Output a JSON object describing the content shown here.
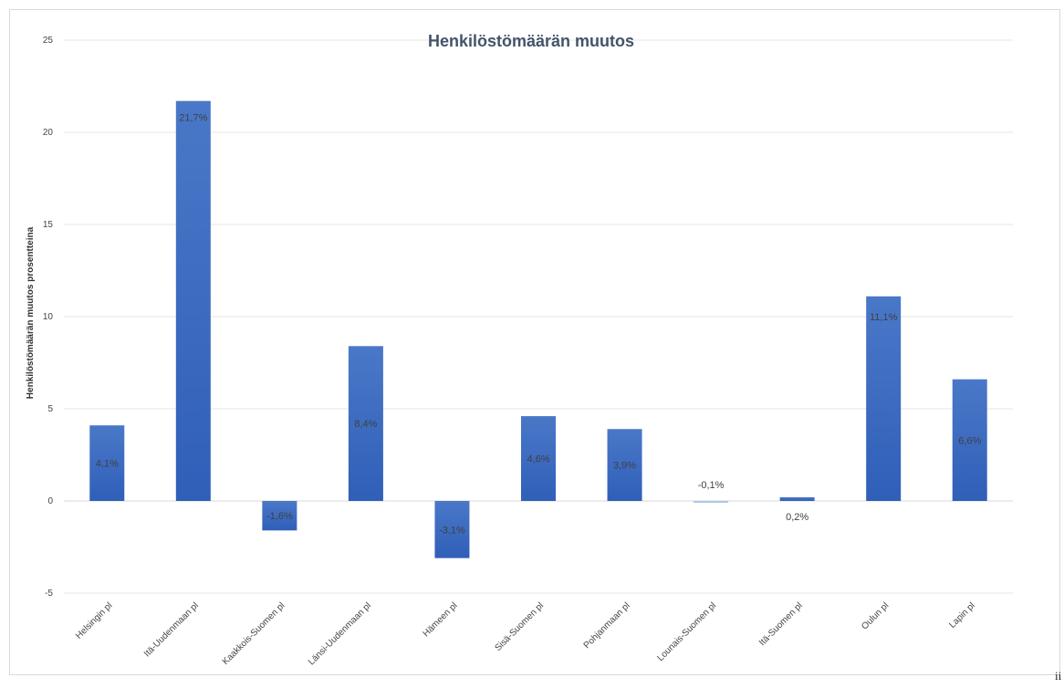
{
  "chart_data": {
    "type": "bar",
    "title": "Henkilöstömäärän muutos",
    "xlabel": "",
    "ylabel": "Henkilöstömäärän muutos prosentteina",
    "ylim": [
      -5,
      25
    ],
    "yticks": [
      -5,
      0,
      5,
      10,
      15,
      20,
      25
    ],
    "grid": true,
    "categories": [
      "Helsingin pl",
      "Itä-Uudenmaan pl",
      "Kaakkois-Suomen pl",
      "Länsi-Uudenmaan pl",
      "Hämeen pl",
      "Sisä-Suomen pl",
      "Pohjanmaan pl",
      "Lounais-Suomen pl",
      "Itä-Suomen pl",
      "Oulun pl",
      "Lapin pl"
    ],
    "values": [
      4.1,
      21.7,
      -1.6,
      8.4,
      -3.1,
      4.6,
      3.9,
      -0.1,
      0.2,
      11.1,
      6.6
    ],
    "data_labels": [
      "4,1%",
      "21,7%",
      "-1,6%",
      "8,4%",
      "-3,1%",
      "4,6%",
      "3,9%",
      "-0,1%",
      "0,2%",
      "11,1%",
      "6,6%"
    ],
    "colors": {
      "bar_top": "#4a78c8",
      "bar_bottom": "#2f5fb8",
      "small_neg_bar": "#aec6e8"
    }
  },
  "stray_text": "ii"
}
